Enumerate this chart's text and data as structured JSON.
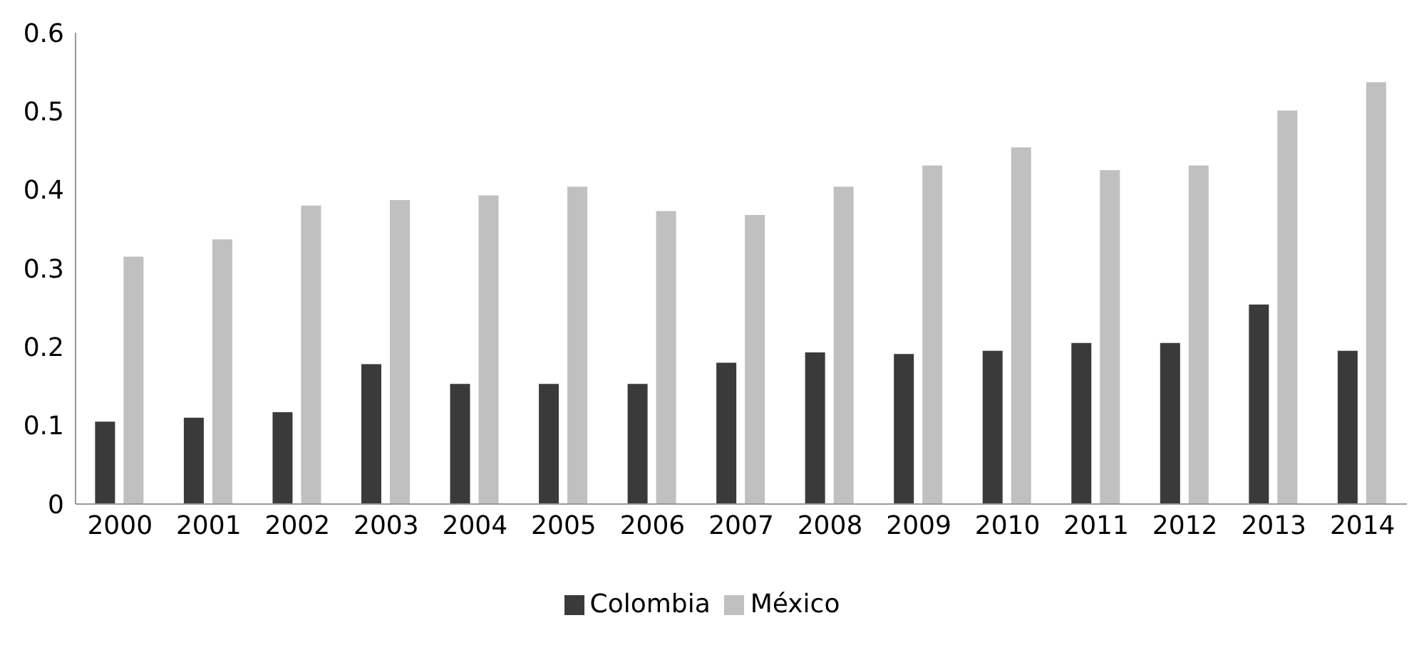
{
  "chart_data": {
    "type": "bar",
    "categories": [
      "2000",
      "2001",
      "2002",
      "2003",
      "2004",
      "2005",
      "2006",
      "2007",
      "2008",
      "2009",
      "2010",
      "2011",
      "2012",
      "2013",
      "2014"
    ],
    "series": [
      {
        "name": "Colombia",
        "color": "#3a3a3a",
        "values": [
          0.105,
          0.11,
          0.117,
          0.178,
          0.153,
          0.153,
          0.153,
          0.18,
          0.193,
          0.191,
          0.195,
          0.205,
          0.205,
          0.254,
          0.195
        ]
      },
      {
        "name": "México",
        "color": "#c0c0c0",
        "values": [
          0.315,
          0.337,
          0.38,
          0.387,
          0.393,
          0.404,
          0.373,
          0.368,
          0.404,
          0.431,
          0.454,
          0.425,
          0.431,
          0.501,
          0.537
        ]
      }
    ],
    "ylim": [
      0,
      0.6
    ],
    "yticks": [
      0,
      0.1,
      0.2,
      0.3,
      0.4,
      0.5,
      0.6
    ],
    "grid": false,
    "legend": "bottom"
  }
}
